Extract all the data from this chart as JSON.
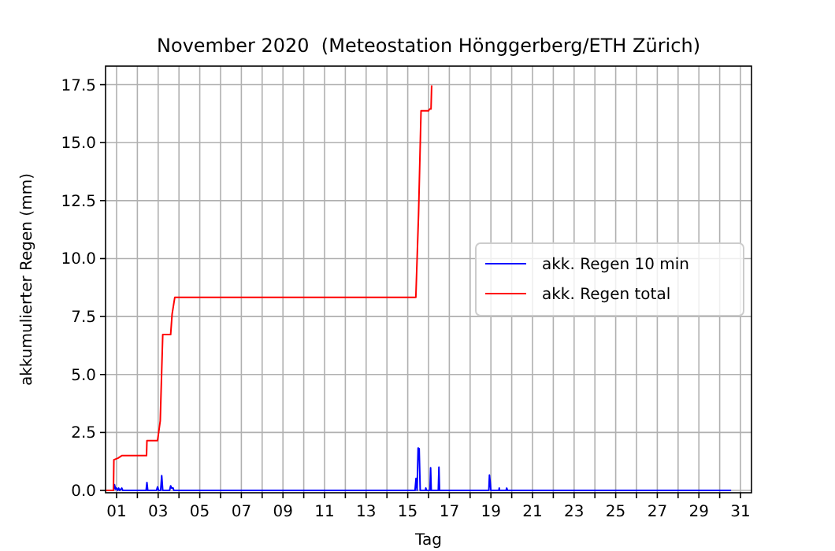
{
  "chart_data": {
    "type": "line",
    "title": "November 2020  (Meteostation Hönggerberg/ETH Zürich)",
    "xlabel": "Tag",
    "ylabel": "akkumulierter Regen (mm)",
    "xlim": [
      0.47,
      31.53
    ],
    "xticks": [
      {
        "value": 1,
        "label": "01"
      },
      {
        "value": 2,
        "label": null
      },
      {
        "value": 3,
        "label": "03"
      },
      {
        "value": 4,
        "label": null
      },
      {
        "value": 5,
        "label": "05"
      },
      {
        "value": 6,
        "label": null
      },
      {
        "value": 7,
        "label": "07"
      },
      {
        "value": 8,
        "label": null
      },
      {
        "value": 9,
        "label": "09"
      },
      {
        "value": 10,
        "label": null
      },
      {
        "value": 11,
        "label": "11"
      },
      {
        "value": 12,
        "label": null
      },
      {
        "value": 13,
        "label": "13"
      },
      {
        "value": 14,
        "label": null
      },
      {
        "value": 15,
        "label": "15"
      },
      {
        "value": 16,
        "label": null
      },
      {
        "value": 17,
        "label": "17"
      },
      {
        "value": 18,
        "label": null
      },
      {
        "value": 19,
        "label": "19"
      },
      {
        "value": 20,
        "label": null
      },
      {
        "value": 21,
        "label": "21"
      },
      {
        "value": 22,
        "label": null
      },
      {
        "value": 23,
        "label": "23"
      },
      {
        "value": 24,
        "label": null
      },
      {
        "value": 25,
        "label": "25"
      },
      {
        "value": 26,
        "label": null
      },
      {
        "value": 27,
        "label": "27"
      },
      {
        "value": 28,
        "label": null
      },
      {
        "value": 29,
        "label": "29"
      },
      {
        "value": 30,
        "label": null
      },
      {
        "value": 31,
        "label": "31"
      }
    ],
    "ylim": [
      -0.1,
      18.3
    ],
    "yticks": [
      {
        "value": 0,
        "label": "0.0"
      },
      2.5,
      {
        "value": 5,
        "label": "5.0"
      },
      7.5,
      {
        "value": 10,
        "label": "10.0"
      },
      12.5,
      {
        "value": 15,
        "label": "15.0"
      },
      17.5
    ],
    "grid": true,
    "legend": "right",
    "line_style": "solid",
    "series": [
      {
        "name": "akk. Regen 10 min",
        "color": "#0000ff",
        "x": [
          0.85,
          0.9,
          0.95,
          1.0,
          1.05,
          1.1,
          1.15,
          1.25,
          1.3,
          2.42,
          2.46,
          2.5,
          2.92,
          2.97,
          3.02,
          3.12,
          3.17,
          3.22,
          3.55,
          3.6,
          3.65,
          3.72,
          3.75,
          15.35,
          15.4,
          15.45,
          15.5,
          15.55,
          15.6,
          15.85,
          15.87,
          15.9,
          16.07,
          16.1,
          16.13,
          16.47,
          16.5,
          16.53,
          18.9,
          18.93,
          18.97,
          19.0,
          19.38,
          19.4,
          19.42,
          19.73,
          19.76,
          19.8,
          30.55
        ],
        "values": [
          0,
          0.25,
          0.05,
          0.1,
          0,
          0.1,
          0,
          0.1,
          0,
          0,
          0.34,
          0,
          0,
          0.15,
          0,
          0,
          0.64,
          0,
          0,
          0.2,
          0.1,
          0.1,
          0,
          0,
          0.52,
          0,
          1.83,
          1.8,
          0,
          0,
          0.1,
          0,
          0,
          0.98,
          0,
          0,
          1.0,
          0,
          0,
          0.66,
          0.3,
          0,
          0,
          0.1,
          0,
          0,
          0.1,
          0,
          0
        ]
      },
      {
        "name": "akk. Regen total",
        "color": "#ff0000",
        "x": [
          0.47,
          0.85,
          0.87,
          1.08,
          1.25,
          2.44,
          2.46,
          2.97,
          3.1,
          3.22,
          3.6,
          3.67,
          3.8,
          15.39,
          15.52,
          15.64,
          16.0,
          16.05,
          16.12,
          16.15
        ],
        "values": [
          0,
          0,
          1.32,
          1.4,
          1.5,
          1.5,
          2.15,
          2.15,
          3.0,
          6.72,
          6.72,
          7.6,
          8.33,
          8.33,
          11.9,
          16.37,
          16.37,
          16.45,
          16.45,
          17.47
        ]
      }
    ]
  }
}
